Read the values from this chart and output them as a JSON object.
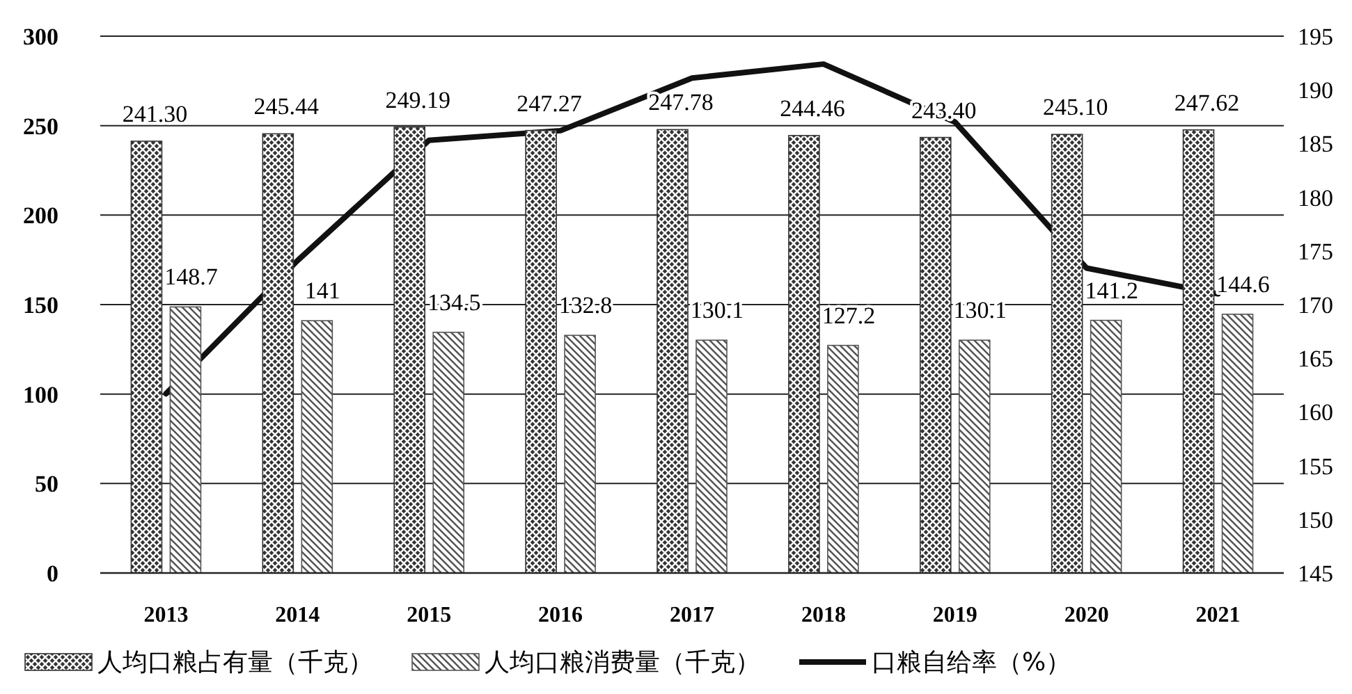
{
  "chart_data": {
    "type": "bar",
    "categories": [
      "2013",
      "2014",
      "2015",
      "2016",
      "2017",
      "2018",
      "2019",
      "2020",
      "2021"
    ],
    "series": [
      {
        "name": "人均口粮占有量（千克）",
        "color": "#333333",
        "values": [
          241.3,
          245.44,
          249.19,
          247.27,
          247.78,
          244.46,
          243.4,
          245.1,
          247.62
        ],
        "value_labels": [
          "241.30",
          "245.44",
          "249.19",
          "247.27",
          "247.78",
          "244.46",
          "243.40",
          "245.10",
          "247.62"
        ]
      },
      {
        "name": "人均口粮消费量（千克）",
        "color": "#555555",
        "values": [
          148.7,
          141,
          134.5,
          132.8,
          130.1,
          127.2,
          130.1,
          141.2,
          144.6
        ],
        "value_labels": [
          "148.7",
          "141",
          "134.5",
          "132.8",
          "130.1",
          "127.2",
          "130.1",
          "141.2",
          "144.6"
        ]
      },
      {
        "name": "口粮自给率（%）",
        "type": "line",
        "axis": "y2",
        "color": "#111111",
        "values": [
          161.7,
          174.1,
          185.3,
          186.2,
          191.1,
          192.4,
          187.0,
          173.4,
          171.0
        ]
      }
    ],
    "ylim": [
      0,
      300
    ],
    "yticks": [
      0,
      50,
      100,
      150,
      200,
      250,
      300
    ],
    "y2lim": [
      145,
      195
    ],
    "y2ticks": [
      145,
      150,
      155,
      160,
      165,
      170,
      175,
      180,
      185,
      190,
      195
    ],
    "grid": "y",
    "legend": "bottom"
  }
}
